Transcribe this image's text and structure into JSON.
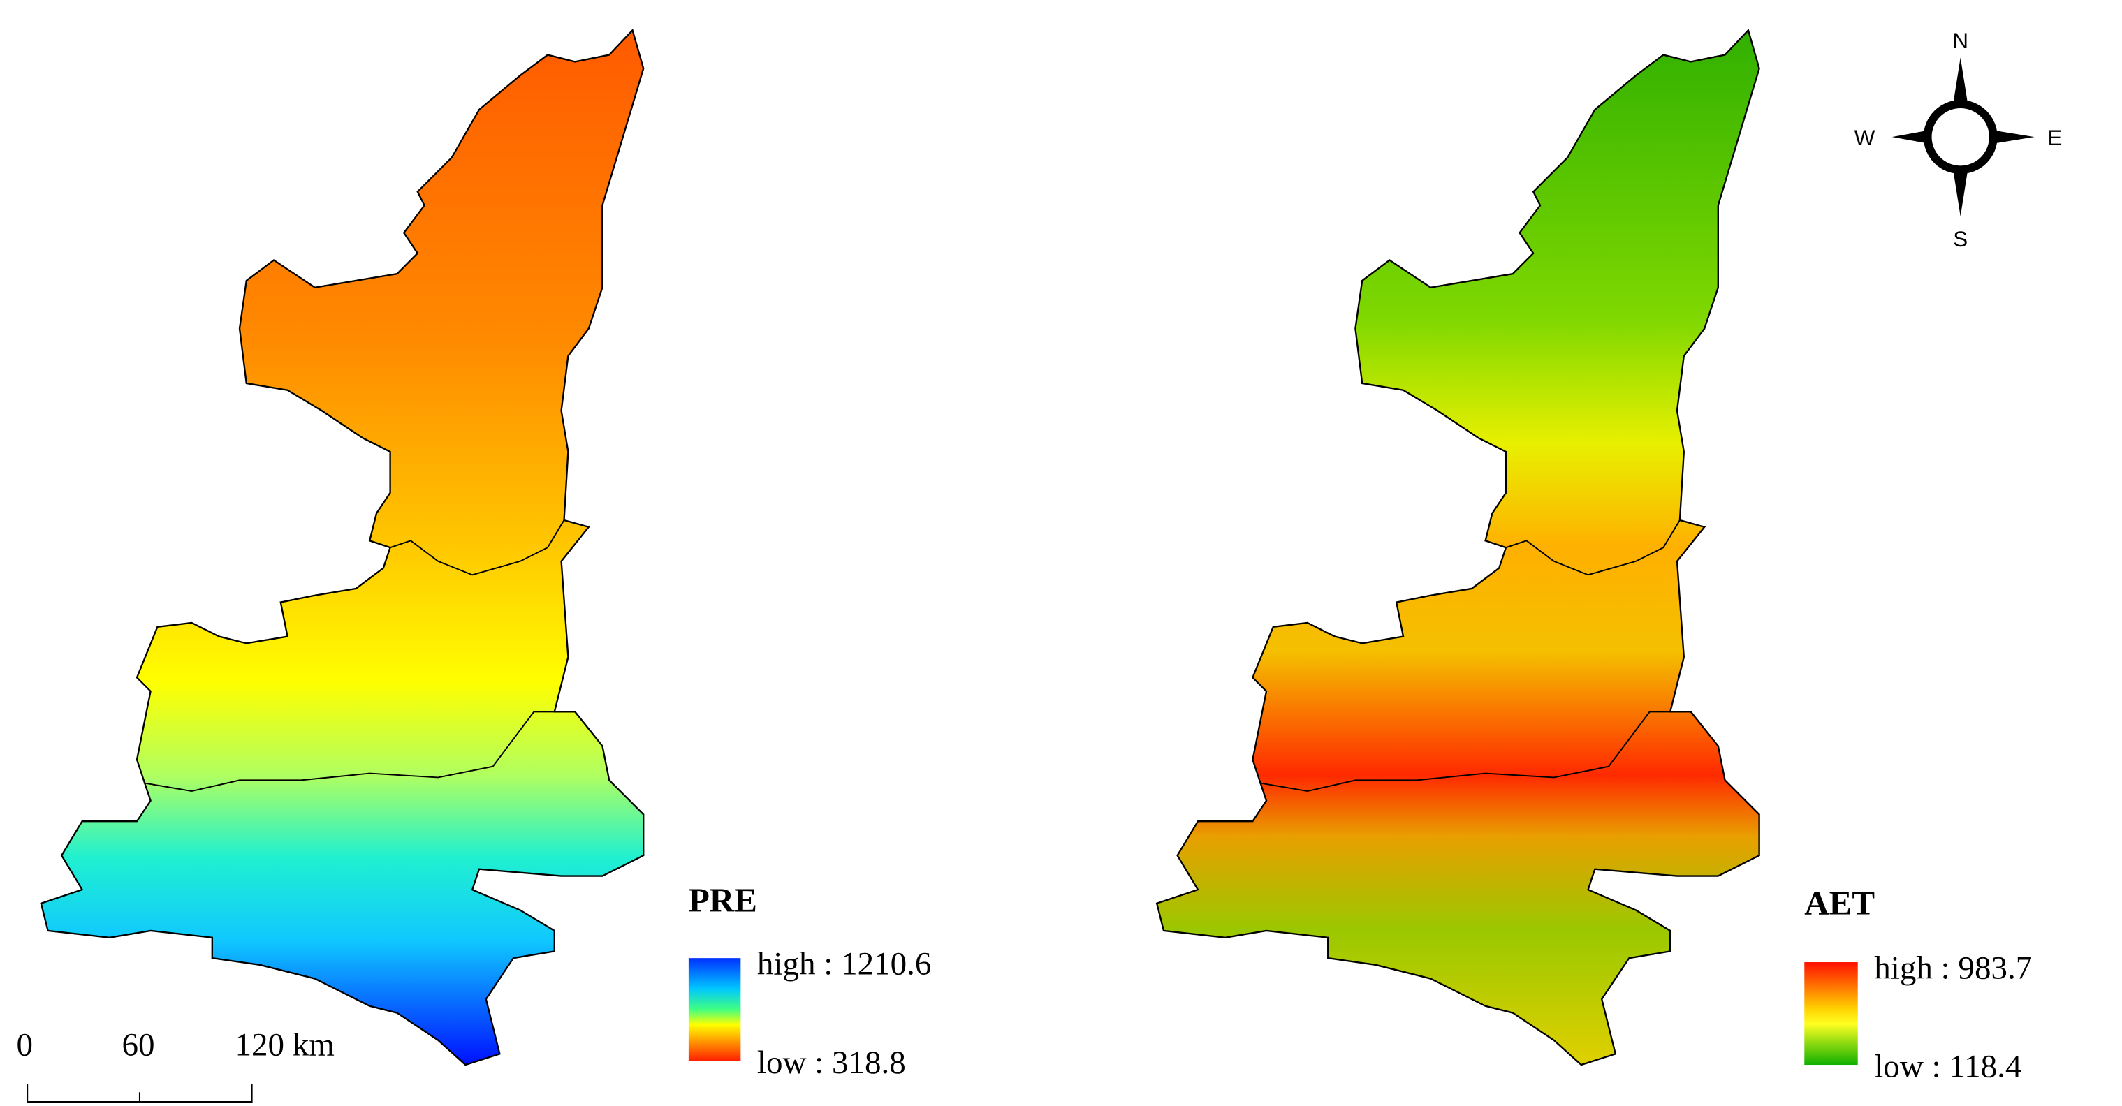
{
  "maps": [
    {
      "title": "PRE",
      "legend": {
        "high": "high : 1210.6",
        "low": "low : 318.8"
      }
    },
    {
      "title": "AET",
      "legend": {
        "high": "high : 983.7",
        "low": "low : 118.4"
      }
    }
  ],
  "scale_bar": {
    "labels": [
      "0",
      "60",
      "120 km"
    ]
  },
  "compass": {
    "north": "N",
    "south": "S",
    "west": "W",
    "east": "E"
  }
}
